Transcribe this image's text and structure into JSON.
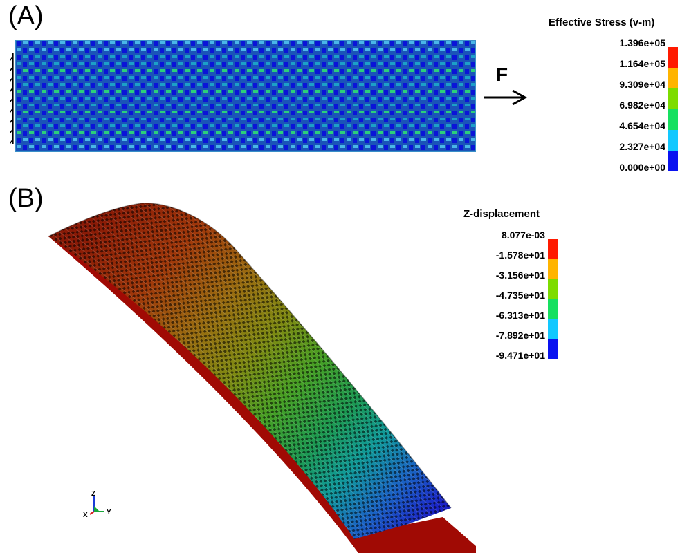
{
  "panel_a": {
    "label": "(A)",
    "force_label": "F",
    "legend": {
      "title": "Effective Stress (v-m)",
      "values": [
        "1.396e+05",
        "1.164e+05",
        "9.309e+04",
        "6.982e+04",
        "4.654e+04",
        "2.327e+04",
        "0.000e+00"
      ],
      "colors": [
        "#ff1a00",
        "#ffb400",
        "#7ddc00",
        "#16e060",
        "#12c8ff",
        "#0a12f0"
      ]
    }
  },
  "panel_b": {
    "label": "(B)",
    "legend": {
      "title": "Z-displacement",
      "values": [
        "8.077e-03",
        "-1.578e+01",
        "-3.156e+01",
        "-4.735e+01",
        "-6.313e+01",
        "-7.892e+01",
        "-9.471e+01"
      ],
      "colors": [
        "#ff1a00",
        "#ffb400",
        "#7ddc00",
        "#16e060",
        "#12c8ff",
        "#0a12f0"
      ]
    },
    "axis_triad": {
      "z": "Z",
      "x": "X",
      "y": "Y"
    }
  }
}
